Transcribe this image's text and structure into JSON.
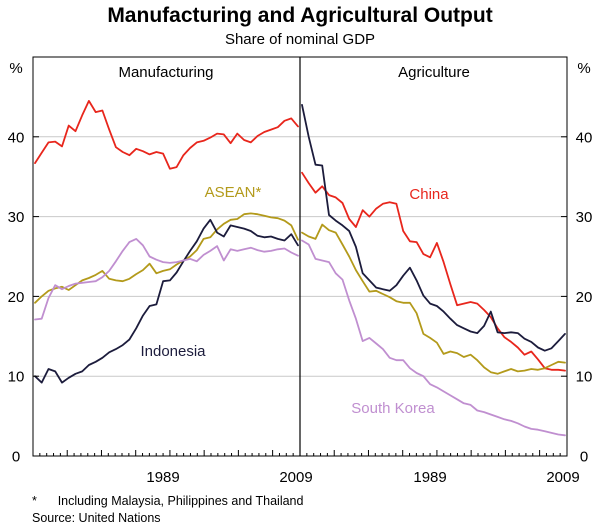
{
  "chart_data": {
    "type": "line",
    "title": "Manufacturing and Agricultural Output",
    "subtitle": "Share of nominal GDP",
    "ylabel_left": "%",
    "ylabel_right": "%",
    "ylim": [
      0,
      50
    ],
    "yticks": [
      0,
      10,
      20,
      30,
      40
    ],
    "xlim": [
      1970,
      2009
    ],
    "xticks": [
      "1989",
      "2009"
    ],
    "colors": {
      "China": "#e8261c",
      "ASEAN": "#b39a1b",
      "Indonesia": "#1c1c3c",
      "South Korea": "#c08fd0"
    },
    "panels": [
      {
        "name": "Manufacturing",
        "title": "Manufacturing",
        "labels": [
          {
            "series": "ASEAN",
            "text": "ASEAN*"
          },
          {
            "series": "Indonesia",
            "text": "Indonesia"
          }
        ],
        "series": [
          {
            "name": "China",
            "x": [
              1970,
              1971,
              1972,
              1973,
              1974,
              1975,
              1976,
              1977,
              1978,
              1979,
              1980,
              1981,
              1982,
              1983,
              1984,
              1985,
              1986,
              1987,
              1988,
              1989,
              1990,
              1991,
              1992,
              1993,
              1994,
              1995,
              1996,
              1997,
              1998,
              1999,
              2000,
              2001,
              2002,
              2003,
              2004,
              2005,
              2006,
              2007,
              2008,
              2009
            ],
            "values": [
              36.7,
              38.0,
              39.3,
              39.4,
              38.8,
              41.4,
              40.7,
              42.7,
              44.5,
              43.1,
              43.3,
              40.9,
              38.7,
              38.1,
              37.7,
              38.5,
              38.2,
              37.8,
              38.1,
              37.9,
              36.0,
              36.2,
              37.7,
              38.6,
              39.3,
              39.5,
              39.9,
              40.4,
              40.3,
              39.2,
              40.4,
              39.6,
              39.3,
              40.1,
              40.6,
              40.9,
              41.2,
              42.0,
              42.3,
              41.3
            ]
          },
          {
            "name": "ASEAN",
            "x": [
              1970,
              1971,
              1972,
              1973,
              1974,
              1975,
              1976,
              1977,
              1978,
              1979,
              1980,
              1981,
              1982,
              1983,
              1984,
              1985,
              1986,
              1987,
              1988,
              1989,
              1990,
              1991,
              1992,
              1993,
              1994,
              1995,
              1996,
              1997,
              1998,
              1999,
              2000,
              2001,
              2002,
              2003,
              2004,
              2005,
              2006,
              2007,
              2008,
              2009
            ],
            "values": [
              19.2,
              20.0,
              20.7,
              21.0,
              21.2,
              20.8,
              21.4,
              22.0,
              22.3,
              22.7,
              23.2,
              22.2,
              22.0,
              21.9,
              22.2,
              22.8,
              23.3,
              24.1,
              22.9,
              23.2,
              23.4,
              24.0,
              24.5,
              25.0,
              25.8,
              27.2,
              27.4,
              28.4,
              29.1,
              29.6,
              29.7,
              30.3,
              30.4,
              30.3,
              30.1,
              29.9,
              29.8,
              29.5,
              28.9,
              27.1
            ]
          },
          {
            "name": "Indonesia",
            "x": [
              1970,
              1971,
              1972,
              1973,
              1974,
              1975,
              1976,
              1977,
              1978,
              1979,
              1980,
              1981,
              1982,
              1983,
              1984,
              1985,
              1986,
              1987,
              1988,
              1989,
              1990,
              1991,
              1992,
              1993,
              1994,
              1995,
              1996,
              1997,
              1998,
              1999,
              2000,
              2001,
              2002,
              2003,
              2004,
              2005,
              2006,
              2007,
              2008,
              2009
            ],
            "values": [
              10.0,
              9.2,
              10.9,
              10.6,
              9.2,
              9.8,
              10.3,
              10.6,
              11.4,
              11.8,
              12.3,
              13.0,
              13.4,
              13.9,
              14.6,
              16.0,
              17.6,
              18.8,
              19.0,
              21.9,
              22.0,
              23.0,
              24.4,
              25.7,
              26.9,
              28.5,
              29.6,
              28.0,
              27.5,
              28.9,
              28.7,
              28.5,
              28.2,
              27.6,
              27.4,
              27.5,
              27.2,
              27.0,
              27.8,
              26.4
            ]
          },
          {
            "name": "South Korea",
            "x": [
              1970,
              1971,
              1972,
              1973,
              1974,
              1975,
              1976,
              1977,
              1978,
              1979,
              1980,
              1981,
              1982,
              1983,
              1984,
              1985,
              1986,
              1987,
              1988,
              1989,
              1990,
              1991,
              1992,
              1993,
              1994,
              1995,
              1996,
              1997,
              1998,
              1999,
              2000,
              2001,
              2002,
              2003,
              2004,
              2005,
              2006,
              2007,
              2008,
              2009
            ],
            "values": [
              17.1,
              17.2,
              19.8,
              21.4,
              20.9,
              21.3,
              21.6,
              21.7,
              21.8,
              21.9,
              22.4,
              23.2,
              24.4,
              25.7,
              26.8,
              27.2,
              26.4,
              25.0,
              24.6,
              24.3,
              24.2,
              24.3,
              24.5,
              24.7,
              24.4,
              25.2,
              25.7,
              26.3,
              24.5,
              25.9,
              25.7,
              25.9,
              26.1,
              25.8,
              25.6,
              25.7,
              25.9,
              26.0,
              25.5,
              25.1
            ]
          }
        ]
      },
      {
        "name": "Agriculture",
        "title": "Agriculture",
        "labels": [
          {
            "series": "China",
            "text": "China"
          },
          {
            "series": "South Korea",
            "text": "South Korea"
          }
        ],
        "series": [
          {
            "name": "China",
            "x": [
              1970,
              1971,
              1972,
              1973,
              1974,
              1975,
              1976,
              1977,
              1978,
              1979,
              1980,
              1981,
              1982,
              1983,
              1984,
              1985,
              1986,
              1987,
              1988,
              1989,
              1990,
              1991,
              1992,
              1993,
              1994,
              1995,
              1996,
              1997,
              1998,
              1999,
              2000,
              2001,
              2002,
              2003,
              2004,
              2005,
              2006,
              2007,
              2008,
              2009
            ],
            "values": [
              35.5,
              34.2,
              33.0,
              33.8,
              32.7,
              32.4,
              31.7,
              29.7,
              28.7,
              30.8,
              30.0,
              31.0,
              31.6,
              31.8,
              31.6,
              28.2,
              26.9,
              26.8,
              25.3,
              24.9,
              26.7,
              24.3,
              21.5,
              18.9,
              19.1,
              19.3,
              19.1,
              18.3,
              17.4,
              16.0,
              14.9,
              14.3,
              13.6,
              12.7,
              13.1,
              12.1,
              11.0,
              10.8,
              10.8,
              10.7
            ]
          },
          {
            "name": "ASEAN",
            "x": [
              1970,
              1971,
              1972,
              1973,
              1974,
              1975,
              1976,
              1977,
              1978,
              1979,
              1980,
              1981,
              1982,
              1983,
              1984,
              1985,
              1986,
              1987,
              1988,
              1989,
              1990,
              1991,
              1992,
              1993,
              1994,
              1995,
              1996,
              1997,
              1998,
              1999,
              2000,
              2001,
              2002,
              2003,
              2004,
              2005,
              2006,
              2007,
              2008,
              2009
            ],
            "values": [
              28.0,
              27.5,
              27.2,
              29.0,
              28.3,
              28.0,
              26.5,
              25.0,
              23.3,
              21.9,
              20.6,
              20.7,
              20.3,
              19.9,
              19.4,
              19.2,
              19.2,
              17.9,
              15.3,
              14.8,
              14.2,
              12.8,
              13.1,
              12.9,
              12.4,
              12.7,
              12.0,
              11.1,
              10.5,
              10.3,
              10.6,
              10.9,
              10.6,
              10.7,
              10.9,
              10.8,
              11.0,
              11.4,
              11.8,
              11.7
            ]
          },
          {
            "name": "Indonesia",
            "x": [
              1970,
              1971,
              1972,
              1973,
              1974,
              1975,
              1976,
              1977,
              1978,
              1979,
              1980,
              1981,
              1982,
              1983,
              1984,
              1985,
              1986,
              1987,
              1988,
              1989,
              1990,
              1991,
              1992,
              1993,
              1994,
              1995,
              1996,
              1997,
              1998,
              1999,
              2000,
              2001,
              2002,
              2003,
              2004,
              2005,
              2006,
              2007,
              2008,
              2009
            ],
            "values": [
              44.0,
              40.0,
              36.5,
              36.4,
              30.2,
              29.5,
              28.9,
              28.2,
              26.2,
              22.9,
              22.0,
              21.1,
              20.9,
              20.7,
              21.4,
              22.6,
              23.6,
              22.0,
              20.1,
              19.1,
              18.8,
              18.1,
              17.2,
              16.4,
              16.0,
              15.6,
              15.4,
              16.3,
              18.1,
              15.5,
              15.4,
              15.5,
              15.4,
              14.7,
              14.3,
              13.6,
              13.2,
              13.5,
              14.4,
              15.3
            ]
          },
          {
            "name": "South Korea",
            "x": [
              1970,
              1971,
              1972,
              1973,
              1974,
              1975,
              1976,
              1977,
              1978,
              1979,
              1980,
              1981,
              1982,
              1983,
              1984,
              1985,
              1986,
              1987,
              1988,
              1989,
              1990,
              1991,
              1992,
              1993,
              1994,
              1995,
              1996,
              1997,
              1998,
              1999,
              2000,
              2001,
              2002,
              2003,
              2004,
              2005,
              2006,
              2007,
              2008,
              2009
            ],
            "values": [
              27.0,
              26.5,
              24.7,
              24.5,
              24.3,
              22.9,
              22.1,
              19.5,
              17.2,
              14.4,
              14.8,
              14.1,
              13.4,
              12.3,
              12.0,
              12.0,
              11.0,
              10.4,
              10.0,
              9.0,
              8.6,
              8.1,
              7.6,
              7.1,
              6.6,
              6.4,
              5.7,
              5.5,
              5.2,
              4.9,
              4.6,
              4.4,
              4.1,
              3.7,
              3.4,
              3.3,
              3.1,
              2.9,
              2.7,
              2.6
            ]
          }
        ]
      }
    ]
  },
  "footnote": "*      Including Malaysia, Philippines and Thailand",
  "source": "Source: United Nations"
}
